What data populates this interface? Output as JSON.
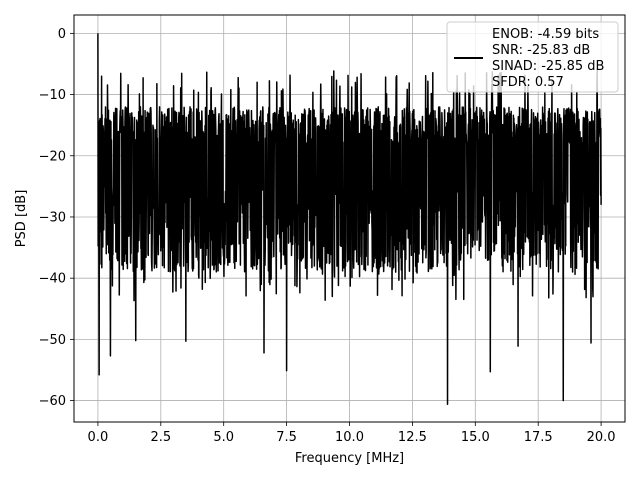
{
  "chart_data": {
    "type": "line",
    "xlabel": "Frequency [MHz]",
    "ylabel": "PSD [dB]",
    "xlim": [
      -0.95,
      20.95
    ],
    "ylim": [
      -63.5,
      3
    ],
    "xticks": [
      0.0,
      2.5,
      5.0,
      7.5,
      10.0,
      12.5,
      15.0,
      17.5,
      20.0
    ],
    "xtick_labels": [
      "0.0",
      "2.5",
      "5.0",
      "7.5",
      "10.0",
      "12.5",
      "15.0",
      "17.5",
      "20.0"
    ],
    "yticks": [
      0,
      -10,
      -20,
      -30,
      -40,
      -50,
      -60
    ],
    "ytick_labels": [
      "0",
      "−10",
      "−20",
      "−30",
      "−40",
      "−50",
      "−60"
    ],
    "grid": true,
    "legend_position": "top-right",
    "series": [
      {
        "name": "ENOB: -4.59 bits\nSNR: -25.83 dB\nSINAD: -25.85 dB\nSFDR: 0.57",
        "color": "#000000",
        "x_range": [
          0,
          20
        ],
        "dc_spike": [
          0,
          0
        ],
        "noise_floor_band": [
          -35,
          -10
        ],
        "notable_points": [
          {
            "x": 0.05,
            "y": -55.8
          },
          {
            "x": 0.5,
            "y": -52.7
          },
          {
            "x": 1.5,
            "y": -50.2
          },
          {
            "x": 3.5,
            "y": -50.3
          },
          {
            "x": 6.6,
            "y": -52.2
          },
          {
            "x": 7.5,
            "y": -55.1
          },
          {
            "x": 13.9,
            "y": -60.6
          },
          {
            "x": 15.6,
            "y": -55.3
          },
          {
            "x": 16.7,
            "y": -51.1
          },
          {
            "x": 18.5,
            "y": -60.0
          },
          {
            "x": 19.6,
            "y": -50.6
          }
        ]
      }
    ],
    "legend": {
      "lines": [
        "ENOB: -4.59 bits",
        "SNR: -25.83 dB",
        "SINAD: -25.85 dB",
        "SFDR: 0.57"
      ]
    }
  }
}
